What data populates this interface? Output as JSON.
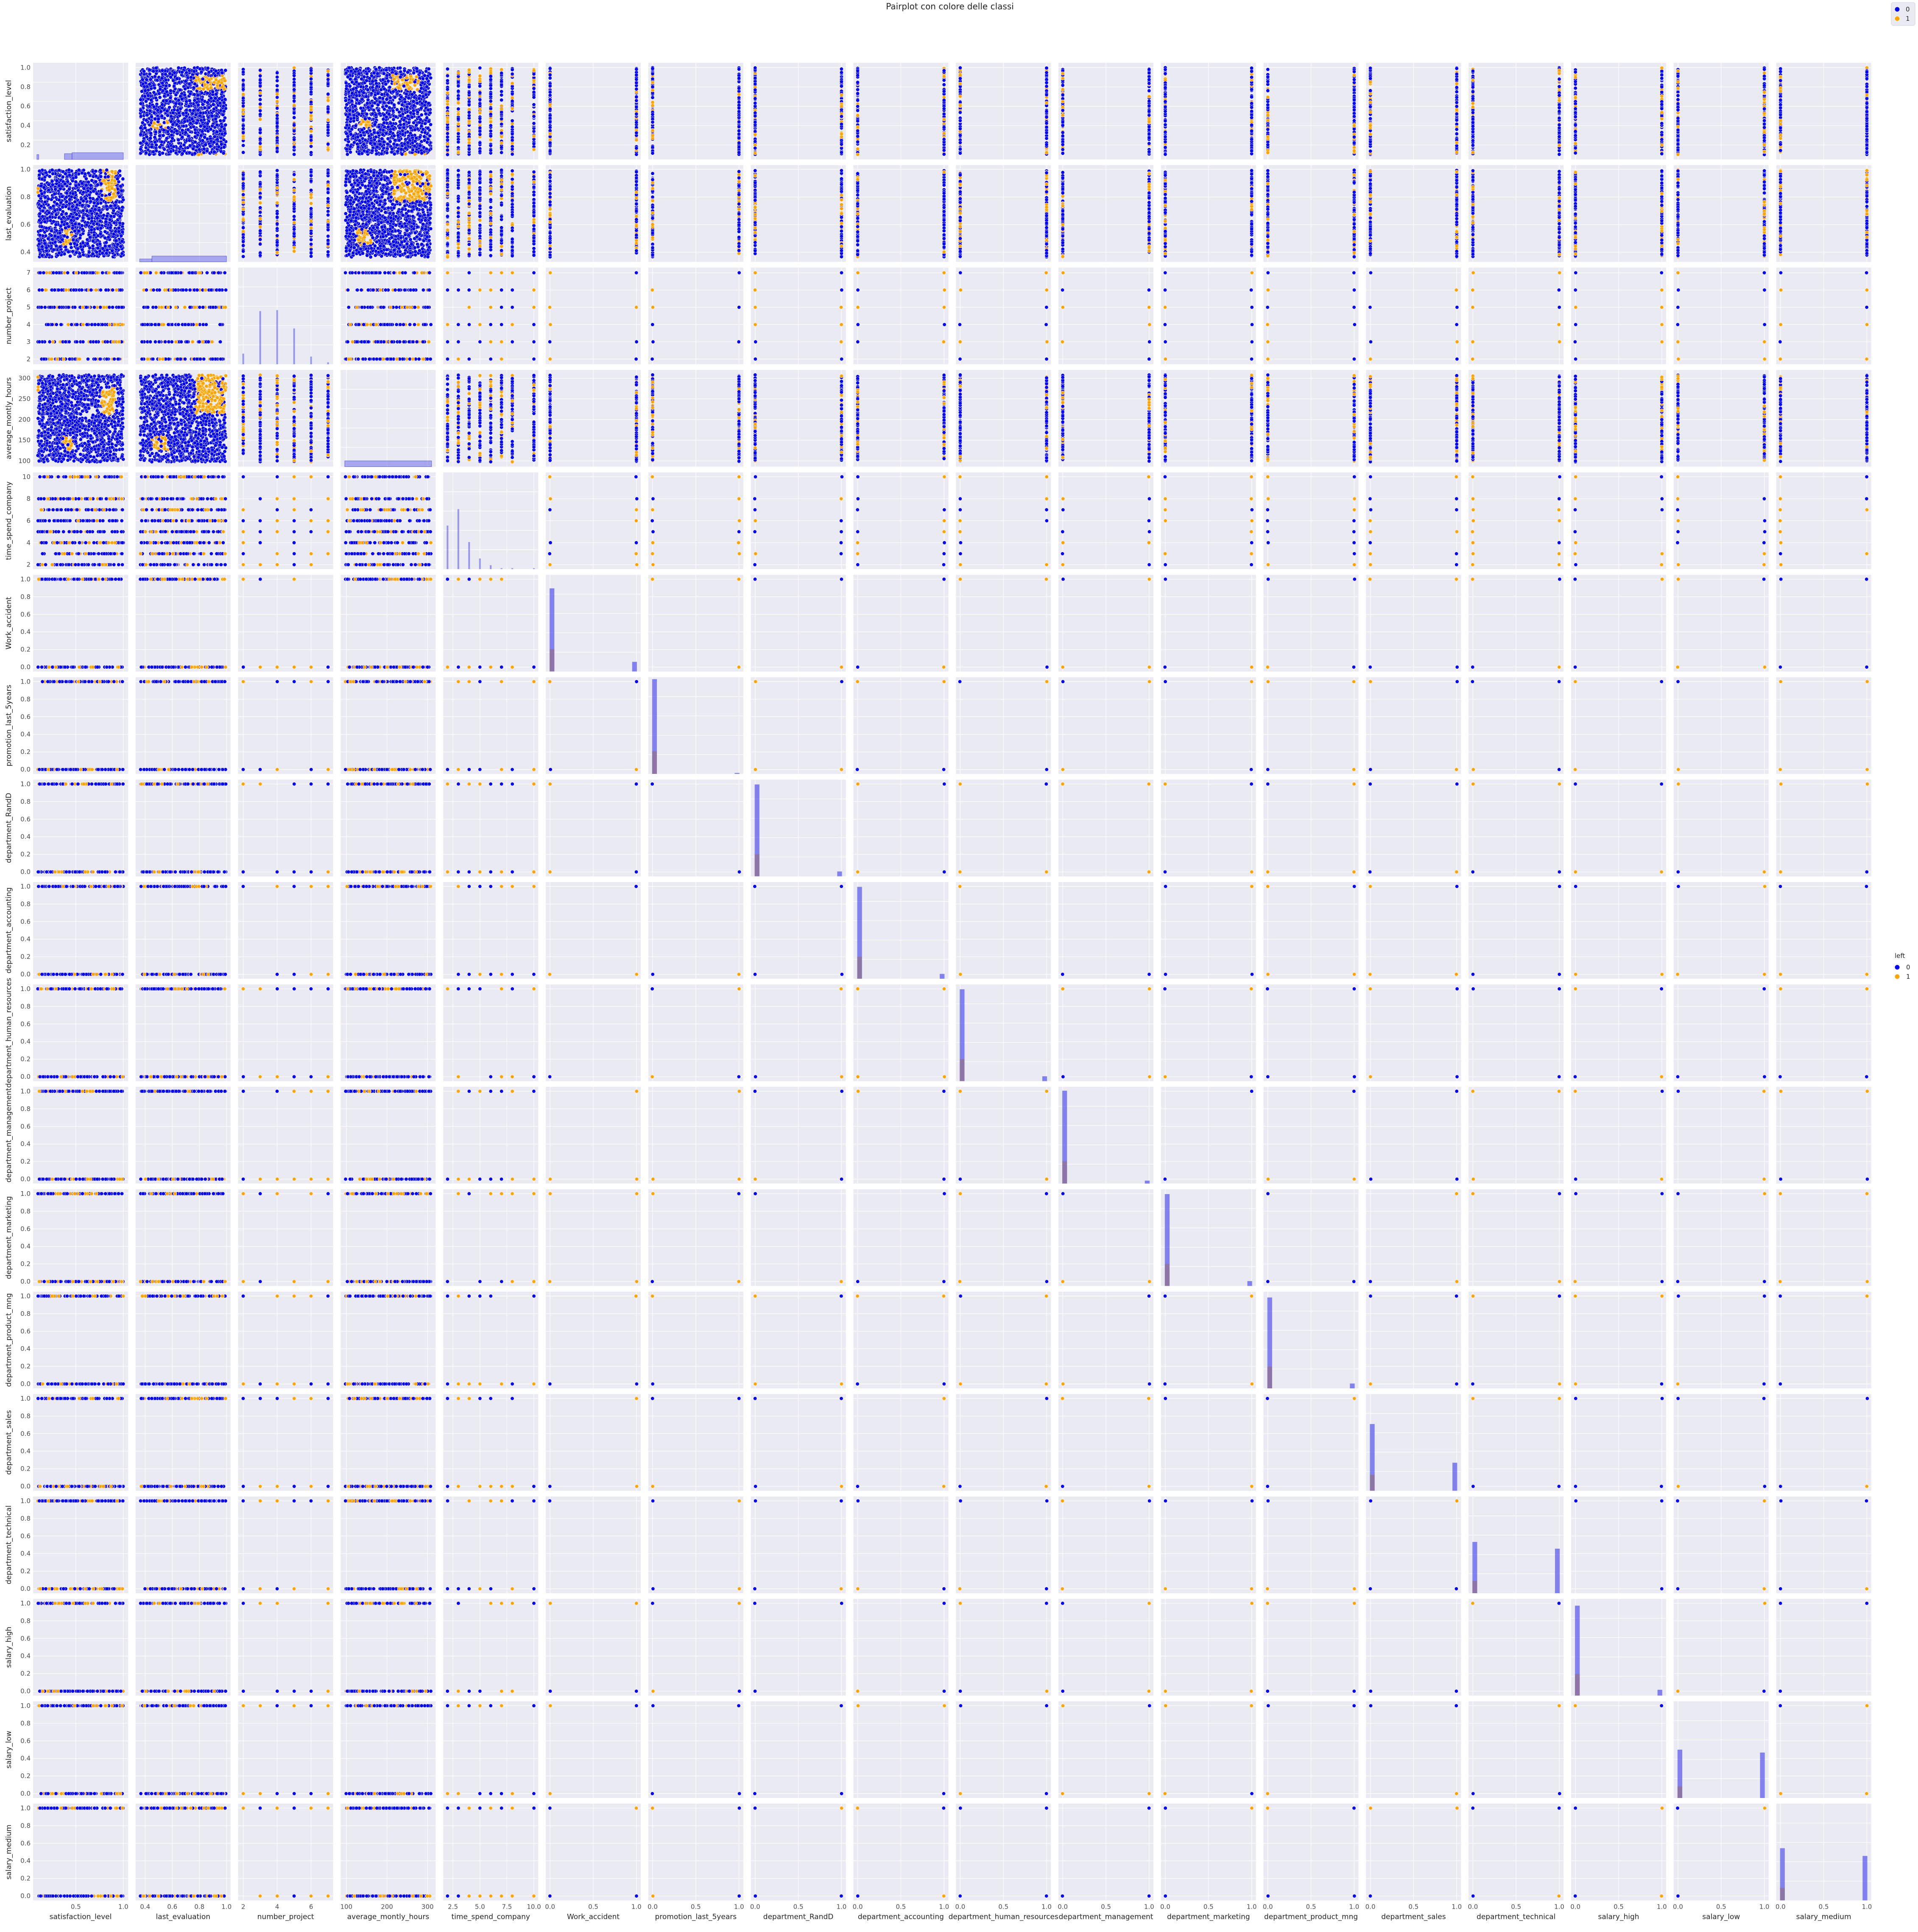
{
  "chart_data": {
    "type": "scatter",
    "title": "Pairplot con colore delle classi",
    "hue": "left",
    "legend": {
      "title": "left",
      "entries": [
        {
          "label": "0",
          "color": "#0000ff"
        },
        {
          "label": "1",
          "color": "#ffa500"
        }
      ],
      "placement_main": "right-center",
      "placement_top": "top-right"
    },
    "diagonal": "histogram",
    "grid": true,
    "background": "#eaeaf2",
    "variables": [
      {
        "name": "satisfaction_level",
        "kind": "cont",
        "range": [
          0.05,
          1.05
        ],
        "ticks": [
          0.5,
          1.0
        ],
        "tick_labels": [
          "0.5",
          "1.0"
        ],
        "y_ticks": [
          0.2,
          0.4,
          0.6,
          0.8,
          1.0
        ],
        "y_tick_labels": [
          "0.2",
          "0.4",
          "0.6",
          "0.8",
          "1.0"
        ]
      },
      {
        "name": "last_evaluation",
        "kind": "cont",
        "range": [
          0.33,
          1.03
        ],
        "ticks": [
          0.4,
          0.6,
          0.8,
          1.0
        ],
        "tick_labels": [
          "0.4",
          "0.6",
          "0.8",
          "1.0"
        ],
        "y_ticks": [
          0.4,
          0.6,
          0.8,
          1.0
        ],
        "y_tick_labels": [
          "0.4",
          "0.6",
          "0.8",
          "1.0"
        ]
      },
      {
        "name": "number_project",
        "kind": "disc",
        "values": [
          2,
          3,
          4,
          5,
          6,
          7
        ],
        "range": [
          1.7,
          7.3
        ],
        "ticks": [
          2,
          4,
          6
        ],
        "tick_labels": [
          "2",
          "4",
          "6"
        ],
        "y_ticks": [
          2,
          3,
          4,
          5,
          6,
          7
        ],
        "y_tick_labels": [
          "2",
          "3",
          "4",
          "5",
          "6",
          "7"
        ]
      },
      {
        "name": "average_montly_hours",
        "kind": "cont",
        "range": [
          86,
          320
        ],
        "ticks": [
          100,
          200,
          300
        ],
        "tick_labels": [
          "100",
          "200",
          "300"
        ],
        "y_ticks": [
          100,
          150,
          200,
          250,
          300
        ],
        "y_tick_labels": [
          "100",
          "150",
          "200",
          "250",
          "300"
        ]
      },
      {
        "name": "time_spend_company",
        "kind": "disc",
        "values": [
          2,
          3,
          4,
          5,
          6,
          7,
          8,
          10
        ],
        "range": [
          1.6,
          10.4
        ],
        "ticks": [
          2.5,
          5.0,
          7.5,
          10.0
        ],
        "tick_labels": [
          "2.5",
          "5.0",
          "7.5",
          "10.0"
        ],
        "y_ticks": [
          2,
          4,
          6,
          8,
          10
        ],
        "y_tick_labels": [
          "2",
          "4",
          "6",
          "8",
          "10"
        ]
      },
      {
        "name": "Work_accident",
        "kind": "bin",
        "range": [
          -0.05,
          1.05
        ],
        "ticks": [
          0.0,
          0.5,
          1.0
        ],
        "tick_labels": [
          "0.0",
          "0.5",
          "1.0"
        ],
        "y_ticks": [
          0.0,
          0.2,
          0.4,
          0.6,
          0.8,
          1.0
        ],
        "y_tick_labels": [
          "0.0",
          "0.2",
          "0.4",
          "0.6",
          "0.8",
          "1.0"
        ]
      },
      {
        "name": "promotion_last_5years",
        "kind": "bin",
        "range": [
          -0.05,
          1.05
        ],
        "ticks": [
          0.0,
          0.5,
          1.0
        ],
        "tick_labels": [
          "0.0",
          "0.5",
          "1.0"
        ],
        "y_ticks": [
          0.0,
          0.2,
          0.4,
          0.6,
          0.8,
          1.0
        ],
        "y_tick_labels": [
          "0.0",
          "0.2",
          "0.4",
          "0.6",
          "0.8",
          "1.0"
        ]
      },
      {
        "name": "department_RandD",
        "kind": "bin",
        "range": [
          -0.05,
          1.05
        ],
        "ticks": [
          0.0,
          0.5,
          1.0
        ],
        "tick_labels": [
          "0.0",
          "0.5",
          "1.0"
        ],
        "y_ticks": [
          0.0,
          0.2,
          0.4,
          0.6,
          0.8,
          1.0
        ],
        "y_tick_labels": [
          "0.0",
          "0.2",
          "0.4",
          "0.6",
          "0.8",
          "1.0"
        ]
      },
      {
        "name": "department_accounting",
        "kind": "bin",
        "range": [
          -0.05,
          1.05
        ],
        "ticks": [
          0.0,
          0.5,
          1.0
        ],
        "tick_labels": [
          "0.0",
          "0.5",
          "1.0"
        ],
        "y_ticks": [
          0.0,
          0.2,
          0.4,
          0.6,
          0.8,
          1.0
        ],
        "y_tick_labels": [
          "0.0",
          "0.2",
          "0.4",
          "0.6",
          "0.8",
          "1.0"
        ]
      },
      {
        "name": "department_human_resources",
        "kind": "bin",
        "range": [
          -0.05,
          1.05
        ],
        "ticks": [
          0.0,
          0.5,
          1.0
        ],
        "tick_labels": [
          "0.0",
          "0.5",
          "1.0"
        ],
        "y_ticks": [
          0.0,
          0.2,
          0.4,
          0.6,
          0.8,
          1.0
        ],
        "y_tick_labels": [
          "0.0",
          "0.2",
          "0.4",
          "0.6",
          "0.8",
          "1.0"
        ]
      },
      {
        "name": "department_management",
        "kind": "bin",
        "range": [
          -0.05,
          1.05
        ],
        "ticks": [
          0.0,
          0.5,
          1.0
        ],
        "tick_labels": [
          "0.0",
          "0.5",
          "1.0"
        ],
        "y_ticks": [
          0.0,
          0.2,
          0.4,
          0.6,
          0.8,
          1.0
        ],
        "y_tick_labels": [
          "0.0",
          "0.2",
          "0.4",
          "0.6",
          "0.8",
          "1.0"
        ]
      },
      {
        "name": "department_marketing",
        "kind": "bin",
        "range": [
          -0.05,
          1.05
        ],
        "ticks": [
          0.0,
          0.5,
          1.0
        ],
        "tick_labels": [
          "0.0",
          "0.5",
          "1.0"
        ],
        "y_ticks": [
          0.0,
          0.2,
          0.4,
          0.6,
          0.8,
          1.0
        ],
        "y_tick_labels": [
          "0.0",
          "0.2",
          "0.4",
          "0.6",
          "0.8",
          "1.0"
        ]
      },
      {
        "name": "department_product_mng",
        "kind": "bin",
        "range": [
          -0.05,
          1.05
        ],
        "ticks": [
          0.0,
          0.5,
          1.0
        ],
        "tick_labels": [
          "0.0",
          "0.5",
          "1.0"
        ],
        "y_ticks": [
          0.0,
          0.2,
          0.4,
          0.6,
          0.8,
          1.0
        ],
        "y_tick_labels": [
          "0.0",
          "0.2",
          "0.4",
          "0.6",
          "0.8",
          "1.0"
        ]
      },
      {
        "name": "department_sales",
        "kind": "bin",
        "range": [
          -0.05,
          1.05
        ],
        "ticks": [
          0.0,
          0.5,
          1.0
        ],
        "tick_labels": [
          "0.0",
          "0.5",
          "1.0"
        ],
        "y_ticks": [
          0.0,
          0.2,
          0.4,
          0.6,
          0.8,
          1.0
        ],
        "y_tick_labels": [
          "0.0",
          "0.2",
          "0.4",
          "0.6",
          "0.8",
          "1.0"
        ]
      },
      {
        "name": "department_technical",
        "kind": "bin",
        "range": [
          -0.05,
          1.05
        ],
        "ticks": [
          0.0,
          0.5,
          1.0
        ],
        "tick_labels": [
          "0.0",
          "0.5",
          "1.0"
        ],
        "y_ticks": [
          0.0,
          0.2,
          0.4,
          0.6,
          0.8,
          1.0
        ],
        "y_tick_labels": [
          "0.0",
          "0.2",
          "0.4",
          "0.6",
          "0.8",
          "1.0"
        ]
      },
      {
        "name": "salary_high",
        "kind": "bin",
        "range": [
          -0.05,
          1.05
        ],
        "ticks": [
          0.0,
          0.5,
          1.0
        ],
        "tick_labels": [
          "0.0",
          "0.5",
          "1.0"
        ],
        "y_ticks": [
          0.0,
          0.2,
          0.4,
          0.6,
          0.8,
          1.0
        ],
        "y_tick_labels": [
          "0.0",
          "0.2",
          "0.4",
          "0.6",
          "0.8",
          "1.0"
        ]
      },
      {
        "name": "salary_low",
        "kind": "bin",
        "range": [
          -0.05,
          1.05
        ],
        "ticks": [
          0.0,
          0.5,
          1.0
        ],
        "tick_labels": [
          "0.0",
          "0.5",
          "1.0"
        ],
        "y_ticks": [
          0.0,
          0.2,
          0.4,
          0.6,
          0.8,
          1.0
        ],
        "y_tick_labels": [
          "0.0",
          "0.2",
          "0.4",
          "0.6",
          "0.8",
          "1.0"
        ]
      },
      {
        "name": "salary_medium",
        "kind": "bin",
        "range": [
          -0.05,
          1.05
        ],
        "ticks": [
          0.0,
          0.5,
          1.0
        ],
        "tick_labels": [
          "0.0",
          "0.5",
          "1.0"
        ],
        "y_ticks": [
          0.0,
          0.2,
          0.4,
          0.6,
          0.8,
          1.0
        ],
        "y_tick_labels": [
          "0.0",
          "0.2",
          "0.4",
          "0.6",
          "0.8",
          "1.0"
        ]
      }
    ],
    "clusters_left1": {
      "satisfaction_level|last_evaluation": [
        [
          0.37,
          0.46,
          0.45,
          0.57
        ],
        [
          0.77,
          0.92,
          0.77,
          1.0
        ],
        [
          0.09,
          0.11,
          0.77,
          1.0
        ]
      ],
      "satisfaction_level|average_montly_hours": [
        [
          0.37,
          0.46,
          126,
          161
        ],
        [
          0.77,
          0.92,
          214,
          278
        ],
        [
          0.09,
          0.11,
          242,
          310
        ]
      ],
      "last_evaluation|average_montly_hours": [
        [
          0.45,
          0.57,
          126,
          161
        ],
        [
          0.77,
          1.0,
          214,
          310
        ]
      ]
    },
    "diag_hist": {
      "satisfaction_level": {
        "bins": [
          [
            0.09,
            0.11,
            0.05
          ],
          [
            0.38,
            0.46,
            0.06
          ],
          [
            0.46,
            1.0,
            0.07
          ]
        ]
      },
      "last_evaluation": {
        "bins": [
          [
            0.36,
            0.45,
            0.03
          ],
          [
            0.45,
            1.0,
            0.06
          ]
        ]
      },
      "number_project": {
        "bins": [
          [
            2,
            0.11
          ],
          [
            3,
            0.55
          ],
          [
            4,
            0.56
          ],
          [
            5,
            0.37
          ],
          [
            6,
            0.08
          ],
          [
            7,
            0.02
          ]
        ]
      },
      "average_montly_hours": {
        "bins": [
          [
            96,
            310,
            0.06
          ]
        ]
      },
      "time_spend_company": {
        "bins": [
          [
            2,
            0.45
          ],
          [
            3,
            0.62
          ],
          [
            4,
            0.28
          ],
          [
            5,
            0.11
          ],
          [
            6,
            0.04
          ],
          [
            7,
            0.01
          ],
          [
            8,
            0.01
          ],
          [
            10,
            0.01
          ]
        ]
      },
      "Work_accident": {
        "p0": 0.86,
        "p1": 0.1,
        "frac1_at0": 0.27
      },
      "promotion_last_5years": {
        "p0": 0.98,
        "p1": 0.01,
        "frac1_at0": 0.24
      },
      "department_RandD": {
        "p0": 0.95,
        "p1": 0.05,
        "frac1_at0": 0.24
      },
      "department_accounting": {
        "p0": 0.95,
        "p1": 0.05,
        "frac1_at0": 0.24
      },
      "department_human_resources": {
        "p0": 0.95,
        "p1": 0.05,
        "frac1_at0": 0.24
      },
      "department_management": {
        "p0": 0.96,
        "p1": 0.03,
        "frac1_at0": 0.24
      },
      "department_marketing": {
        "p0": 0.95,
        "p1": 0.05,
        "frac1_at0": 0.24
      },
      "department_product_mng": {
        "p0": 0.94,
        "p1": 0.05,
        "frac1_at0": 0.24
      },
      "department_sales": {
        "p0": 0.69,
        "p1": 0.29,
        "frac1_at0": 0.24
      },
      "department_technical": {
        "p0": 0.53,
        "p1": 0.46,
        "frac1_at0": 0.24
      },
      "salary_high": {
        "p0": 0.93,
        "p1": 0.06,
        "frac1_at0": 0.24
      },
      "salary_low": {
        "p0": 0.5,
        "p1": 0.47,
        "frac1_at0": 0.24
      },
      "salary_medium": {
        "p0": 0.54,
        "p1": 0.46,
        "frac1_at0": 0.24
      }
    }
  }
}
